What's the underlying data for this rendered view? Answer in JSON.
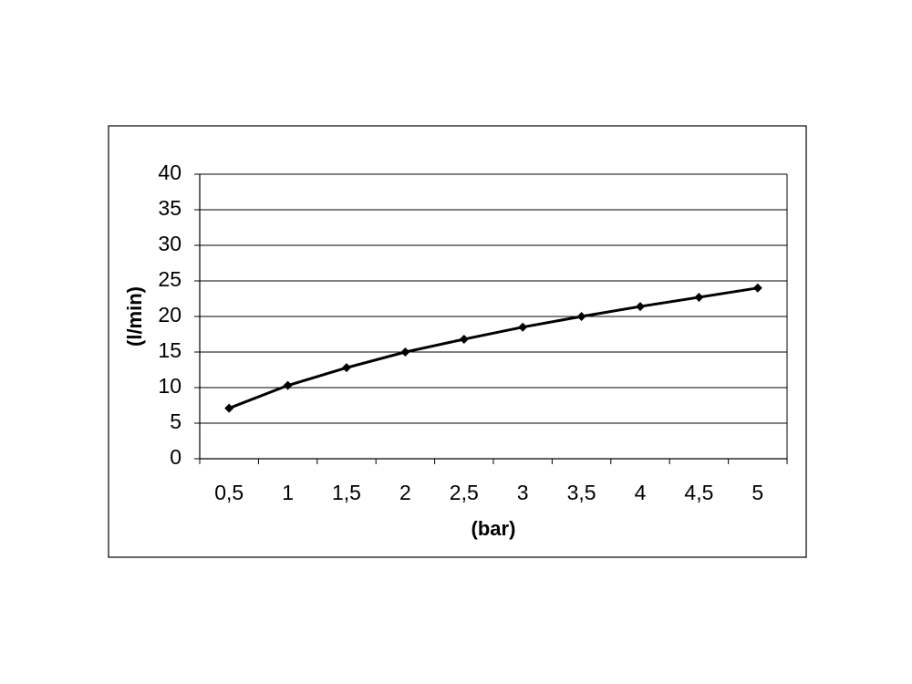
{
  "chart_data": {
    "type": "line",
    "categories": [
      "0,5",
      "1",
      "1,5",
      "2",
      "2,5",
      "3",
      "3,5",
      "4",
      "4,5",
      "5"
    ],
    "values": [
      7.1,
      10.3,
      12.8,
      15,
      16.8,
      18.5,
      20,
      21.4,
      22.7,
      24
    ],
    "color": "#000000",
    "x_label": "(bar)",
    "y_label": "(l/min)",
    "ylim": [
      0,
      40
    ],
    "yticks": [
      0,
      5,
      10,
      15,
      20,
      25,
      30,
      35,
      40
    ],
    "grid": true
  }
}
